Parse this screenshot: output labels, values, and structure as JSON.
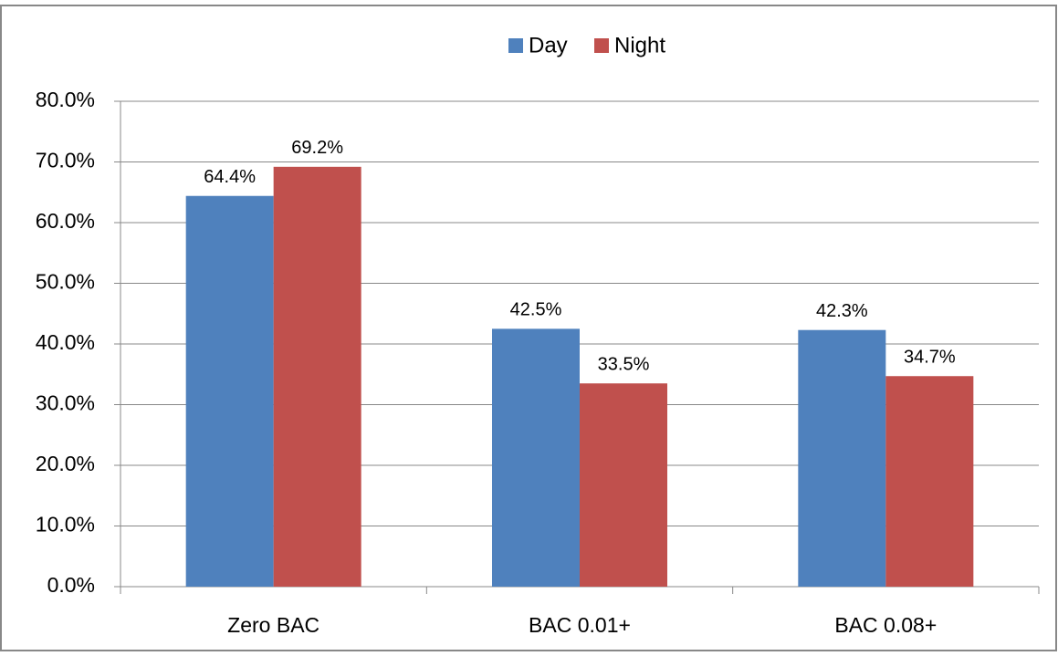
{
  "chart_data": {
    "type": "bar",
    "categories": [
      "Zero BAC",
      "BAC 0.01+",
      "BAC 0.08+"
    ],
    "series": [
      {
        "name": "Day",
        "color": "#4f81bd",
        "values": [
          64.4,
          42.5,
          42.3
        ],
        "value_labels": [
          "64.4%",
          "42.5%",
          "42.3%"
        ]
      },
      {
        "name": "Night",
        "color": "#c0504d",
        "values": [
          69.2,
          33.5,
          34.7
        ],
        "value_labels": [
          "69.2%",
          "33.5%",
          "34.7%"
        ]
      }
    ],
    "ylim": [
      0,
      80
    ],
    "yticks": [
      {
        "value": 0,
        "label": "0.0%"
      },
      {
        "value": 10,
        "label": "10.0%"
      },
      {
        "value": 20,
        "label": "20.0%"
      },
      {
        "value": 30,
        "label": "30.0%"
      },
      {
        "value": 40,
        "label": "40.0%"
      },
      {
        "value": 50,
        "label": "50.0%"
      },
      {
        "value": 60,
        "label": "60.0%"
      },
      {
        "value": 70,
        "label": "70.0%"
      },
      {
        "value": 80,
        "label": "80.0%"
      }
    ],
    "grid": true,
    "legend": "top"
  }
}
